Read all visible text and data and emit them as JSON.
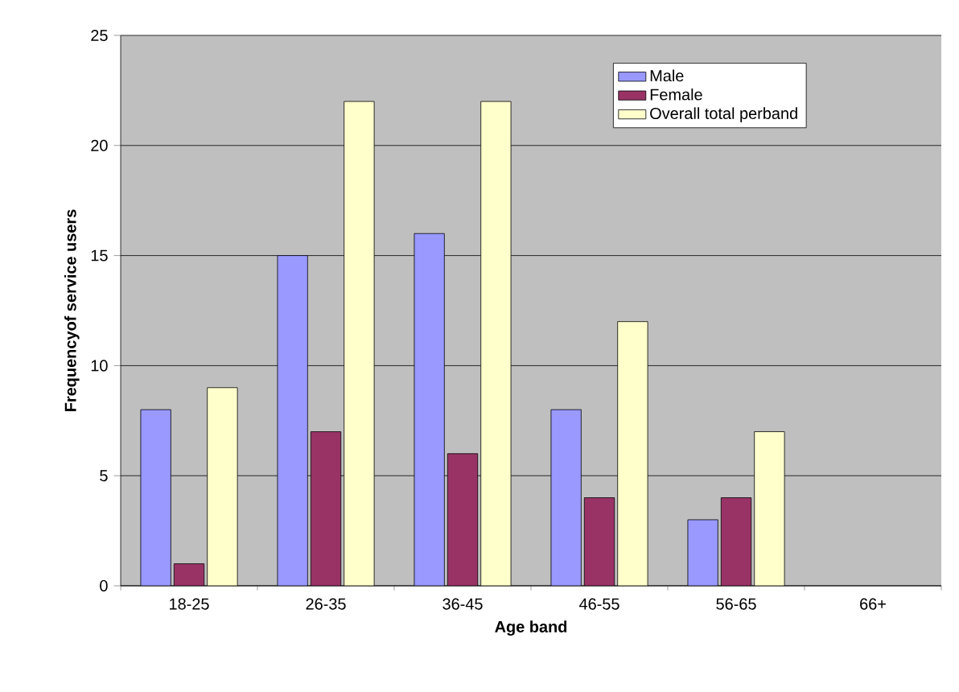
{
  "chart_data": {
    "type": "bar",
    "xlabel": "Age band",
    "ylabel": "Frequencyof service users",
    "categories": [
      "18-25",
      "26-35",
      "36-45",
      "46-55",
      "56-65",
      "66+"
    ],
    "series": [
      {
        "name": "Male",
        "color": "#9999ff",
        "values": [
          8,
          15,
          16,
          8,
          3,
          null
        ]
      },
      {
        "name": "Female",
        "color": "#993366",
        "values": [
          1,
          7,
          6,
          4,
          4,
          null
        ]
      },
      {
        "name": "Overall total perband",
        "color": "#ffffcc",
        "values": [
          9,
          22,
          22,
          12,
          7,
          null
        ]
      }
    ],
    "ylim": [
      0,
      25
    ],
    "yticks": [
      0,
      5,
      10,
      15,
      20,
      25
    ],
    "grid": "y",
    "legend": "top right"
  }
}
